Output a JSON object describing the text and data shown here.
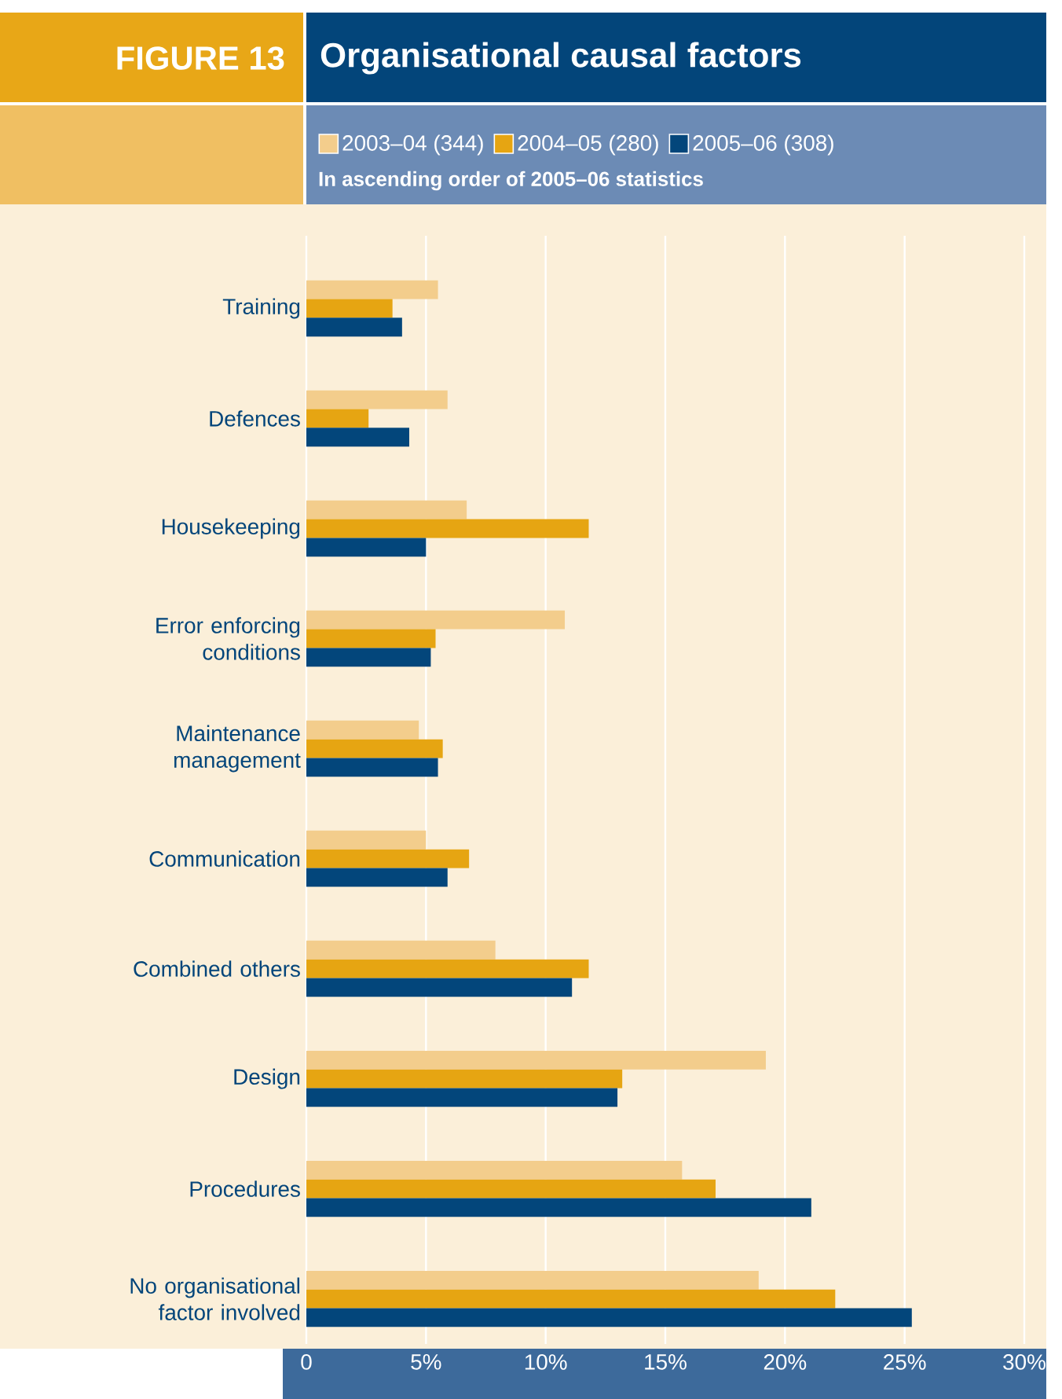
{
  "chart_data": {
    "type": "bar",
    "orientation": "horizontal",
    "title": "Organisational causal factors",
    "subtitle": "In ascending order of 2005–06 statistics",
    "annotations": [
      "FIGURE 13"
    ],
    "categories": [
      "Training",
      "Defences",
      "Housekeeping",
      "Error enforcing conditions",
      "Maintenance management",
      "Communication",
      "Combined others",
      "Design",
      "Procedures",
      "No organisational factor involved"
    ],
    "series": [
      {
        "name": "2003–04 (344)",
        "color": "#f3cd8c",
        "values": [
          5.5,
          5.9,
          6.7,
          10.8,
          4.7,
          5.0,
          7.9,
          19.2,
          15.7,
          18.9
        ]
      },
      {
        "name": "2004–05 (280)",
        "color": "#e6a512",
        "values": [
          3.6,
          2.6,
          11.8,
          5.4,
          5.7,
          6.8,
          11.8,
          13.2,
          17.1,
          22.1
        ]
      },
      {
        "name": "2005–06 (308)",
        "color": "#03467b",
        "values": [
          4.0,
          4.3,
          5.0,
          5.2,
          5.5,
          5.9,
          11.1,
          13.0,
          21.1,
          25.3
        ]
      }
    ],
    "xlim": [
      0,
      30
    ],
    "xticks": [
      0,
      {
        "value": 5,
        "label": "5%"
      },
      {
        "value": 10,
        "label": "10%"
      },
      {
        "value": 15,
        "label": "15%"
      },
      {
        "value": 20,
        "label": "20%"
      },
      {
        "value": 25,
        "label": "25%"
      },
      {
        "value": 30,
        "label": "30%"
      }
    ],
    "grid": "x",
    "legend": "top"
  }
}
